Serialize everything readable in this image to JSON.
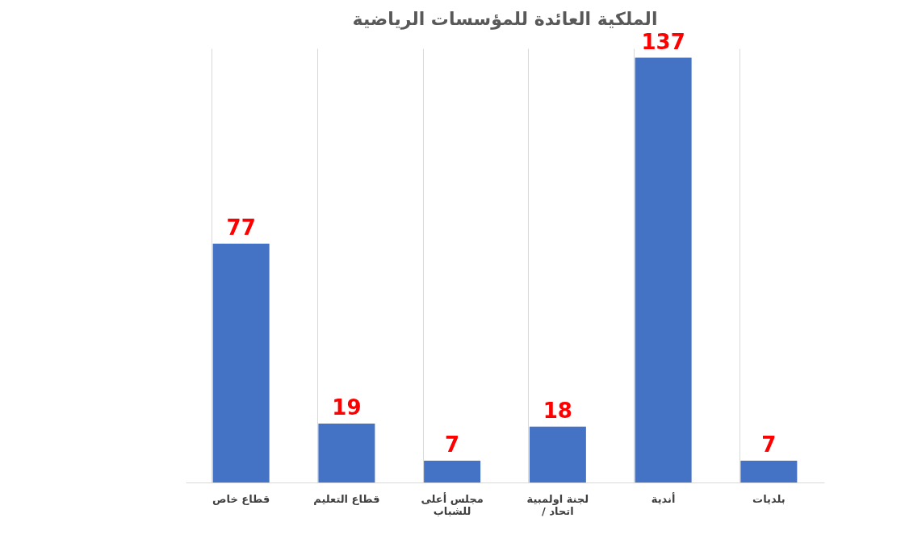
{
  "chart_data": {
    "type": "bar",
    "title": "الملكية العائدة للمؤسسات الرياضية",
    "categories": [
      "قطاع خاص",
      "قطاع التعليم",
      "مجلس أعلى للشباب",
      "لجنة اولمبية / اتحاد",
      "أندية",
      "بلديات"
    ],
    "values": [
      77,
      19,
      7,
      18,
      137,
      7
    ],
    "color": "#4472c4",
    "data_labels": true,
    "grid": "x"
  }
}
